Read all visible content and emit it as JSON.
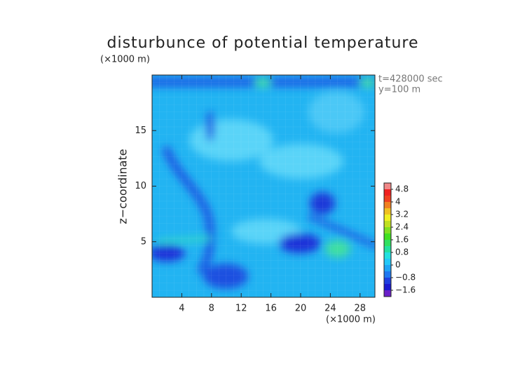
{
  "chart_data": {
    "type": "contour",
    "title": "disturbunce of potential temperature",
    "y_unit": "(×1000 m)",
    "x_unit": "(×1000 m)",
    "ylabel": "z−coordinate",
    "annotations": [
      "t=428000 sec",
      "y=100 m"
    ],
    "xlim": [
      0,
      30
    ],
    "xticks": [
      4,
      8,
      12,
      16,
      20,
      24,
      28
    ],
    "ylim": [
      0,
      20
    ],
    "yticks": [
      5,
      10,
      15
    ],
    "colorbar": {
      "lim": [
        -2,
        5.2
      ],
      "levels": [
        -2,
        -1.6,
        -1.2,
        -0.8,
        -0.4,
        0,
        0.4,
        0.8,
        1.2,
        1.6,
        2,
        2.4,
        2.8,
        3.2,
        3.6,
        4,
        4.4,
        4.8,
        5.2
      ],
      "colors": [
        "#6a1fc8",
        "#1a1ad0",
        "#1e40e0",
        "#1e78f0",
        "#1ea4f5",
        "#22c8f8",
        "#22e0e0",
        "#22e0a0",
        "#30e060",
        "#40e020",
        "#80e020",
        "#c0e020",
        "#f0f020",
        "#f0c020",
        "#f08020",
        "#f04020",
        "#f02020",
        "#f08888"
      ],
      "ticks": [
        {
          "value": -1.6,
          "label": "−1.6"
        },
        {
          "value": -0.8,
          "label": "−0.8"
        },
        0,
        0.8,
        1.6,
        2.4,
        3.2,
        4,
        4.8
      ]
    }
  }
}
